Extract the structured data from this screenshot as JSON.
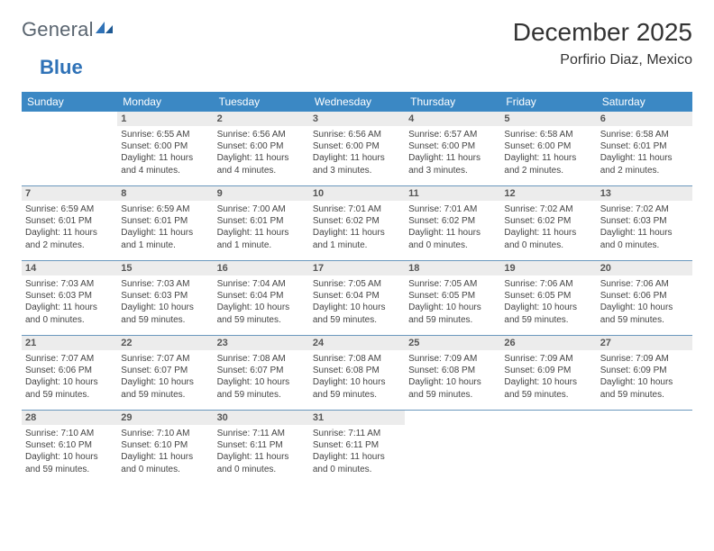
{
  "logo": {
    "text_general": "General",
    "text_blue": "Blue"
  },
  "header": {
    "month_title": "December 2025",
    "location": "Porfirio Diaz, Mexico"
  },
  "colors": {
    "header_bar": "#3b88c4",
    "row_divider": "#6a98bd",
    "daynum_bg": "#ececec",
    "text": "#444444",
    "logo_gray": "#5a6570",
    "logo_blue": "#2f72b7"
  },
  "weekdays": [
    "Sunday",
    "Monday",
    "Tuesday",
    "Wednesday",
    "Thursday",
    "Friday",
    "Saturday"
  ],
  "weeks": [
    [
      {
        "num": "",
        "sunrise": "",
        "sunset": "",
        "daylight1": "",
        "daylight2": ""
      },
      {
        "num": "1",
        "sunrise": "Sunrise: 6:55 AM",
        "sunset": "Sunset: 6:00 PM",
        "daylight1": "Daylight: 11 hours",
        "daylight2": "and 4 minutes."
      },
      {
        "num": "2",
        "sunrise": "Sunrise: 6:56 AM",
        "sunset": "Sunset: 6:00 PM",
        "daylight1": "Daylight: 11 hours",
        "daylight2": "and 4 minutes."
      },
      {
        "num": "3",
        "sunrise": "Sunrise: 6:56 AM",
        "sunset": "Sunset: 6:00 PM",
        "daylight1": "Daylight: 11 hours",
        "daylight2": "and 3 minutes."
      },
      {
        "num": "4",
        "sunrise": "Sunrise: 6:57 AM",
        "sunset": "Sunset: 6:00 PM",
        "daylight1": "Daylight: 11 hours",
        "daylight2": "and 3 minutes."
      },
      {
        "num": "5",
        "sunrise": "Sunrise: 6:58 AM",
        "sunset": "Sunset: 6:00 PM",
        "daylight1": "Daylight: 11 hours",
        "daylight2": "and 2 minutes."
      },
      {
        "num": "6",
        "sunrise": "Sunrise: 6:58 AM",
        "sunset": "Sunset: 6:01 PM",
        "daylight1": "Daylight: 11 hours",
        "daylight2": "and 2 minutes."
      }
    ],
    [
      {
        "num": "7",
        "sunrise": "Sunrise: 6:59 AM",
        "sunset": "Sunset: 6:01 PM",
        "daylight1": "Daylight: 11 hours",
        "daylight2": "and 2 minutes."
      },
      {
        "num": "8",
        "sunrise": "Sunrise: 6:59 AM",
        "sunset": "Sunset: 6:01 PM",
        "daylight1": "Daylight: 11 hours",
        "daylight2": "and 1 minute."
      },
      {
        "num": "9",
        "sunrise": "Sunrise: 7:00 AM",
        "sunset": "Sunset: 6:01 PM",
        "daylight1": "Daylight: 11 hours",
        "daylight2": "and 1 minute."
      },
      {
        "num": "10",
        "sunrise": "Sunrise: 7:01 AM",
        "sunset": "Sunset: 6:02 PM",
        "daylight1": "Daylight: 11 hours",
        "daylight2": "and 1 minute."
      },
      {
        "num": "11",
        "sunrise": "Sunrise: 7:01 AM",
        "sunset": "Sunset: 6:02 PM",
        "daylight1": "Daylight: 11 hours",
        "daylight2": "and 0 minutes."
      },
      {
        "num": "12",
        "sunrise": "Sunrise: 7:02 AM",
        "sunset": "Sunset: 6:02 PM",
        "daylight1": "Daylight: 11 hours",
        "daylight2": "and 0 minutes."
      },
      {
        "num": "13",
        "sunrise": "Sunrise: 7:02 AM",
        "sunset": "Sunset: 6:03 PM",
        "daylight1": "Daylight: 11 hours",
        "daylight2": "and 0 minutes."
      }
    ],
    [
      {
        "num": "14",
        "sunrise": "Sunrise: 7:03 AM",
        "sunset": "Sunset: 6:03 PM",
        "daylight1": "Daylight: 11 hours",
        "daylight2": "and 0 minutes."
      },
      {
        "num": "15",
        "sunrise": "Sunrise: 7:03 AM",
        "sunset": "Sunset: 6:03 PM",
        "daylight1": "Daylight: 10 hours",
        "daylight2": "and 59 minutes."
      },
      {
        "num": "16",
        "sunrise": "Sunrise: 7:04 AM",
        "sunset": "Sunset: 6:04 PM",
        "daylight1": "Daylight: 10 hours",
        "daylight2": "and 59 minutes."
      },
      {
        "num": "17",
        "sunrise": "Sunrise: 7:05 AM",
        "sunset": "Sunset: 6:04 PM",
        "daylight1": "Daylight: 10 hours",
        "daylight2": "and 59 minutes."
      },
      {
        "num": "18",
        "sunrise": "Sunrise: 7:05 AM",
        "sunset": "Sunset: 6:05 PM",
        "daylight1": "Daylight: 10 hours",
        "daylight2": "and 59 minutes."
      },
      {
        "num": "19",
        "sunrise": "Sunrise: 7:06 AM",
        "sunset": "Sunset: 6:05 PM",
        "daylight1": "Daylight: 10 hours",
        "daylight2": "and 59 minutes."
      },
      {
        "num": "20",
        "sunrise": "Sunrise: 7:06 AM",
        "sunset": "Sunset: 6:06 PM",
        "daylight1": "Daylight: 10 hours",
        "daylight2": "and 59 minutes."
      }
    ],
    [
      {
        "num": "21",
        "sunrise": "Sunrise: 7:07 AM",
        "sunset": "Sunset: 6:06 PM",
        "daylight1": "Daylight: 10 hours",
        "daylight2": "and 59 minutes."
      },
      {
        "num": "22",
        "sunrise": "Sunrise: 7:07 AM",
        "sunset": "Sunset: 6:07 PM",
        "daylight1": "Daylight: 10 hours",
        "daylight2": "and 59 minutes."
      },
      {
        "num": "23",
        "sunrise": "Sunrise: 7:08 AM",
        "sunset": "Sunset: 6:07 PM",
        "daylight1": "Daylight: 10 hours",
        "daylight2": "and 59 minutes."
      },
      {
        "num": "24",
        "sunrise": "Sunrise: 7:08 AM",
        "sunset": "Sunset: 6:08 PM",
        "daylight1": "Daylight: 10 hours",
        "daylight2": "and 59 minutes."
      },
      {
        "num": "25",
        "sunrise": "Sunrise: 7:09 AM",
        "sunset": "Sunset: 6:08 PM",
        "daylight1": "Daylight: 10 hours",
        "daylight2": "and 59 minutes."
      },
      {
        "num": "26",
        "sunrise": "Sunrise: 7:09 AM",
        "sunset": "Sunset: 6:09 PM",
        "daylight1": "Daylight: 10 hours",
        "daylight2": "and 59 minutes."
      },
      {
        "num": "27",
        "sunrise": "Sunrise: 7:09 AM",
        "sunset": "Sunset: 6:09 PM",
        "daylight1": "Daylight: 10 hours",
        "daylight2": "and 59 minutes."
      }
    ],
    [
      {
        "num": "28",
        "sunrise": "Sunrise: 7:10 AM",
        "sunset": "Sunset: 6:10 PM",
        "daylight1": "Daylight: 10 hours",
        "daylight2": "and 59 minutes."
      },
      {
        "num": "29",
        "sunrise": "Sunrise: 7:10 AM",
        "sunset": "Sunset: 6:10 PM",
        "daylight1": "Daylight: 11 hours",
        "daylight2": "and 0 minutes."
      },
      {
        "num": "30",
        "sunrise": "Sunrise: 7:11 AM",
        "sunset": "Sunset: 6:11 PM",
        "daylight1": "Daylight: 11 hours",
        "daylight2": "and 0 minutes."
      },
      {
        "num": "31",
        "sunrise": "Sunrise: 7:11 AM",
        "sunset": "Sunset: 6:11 PM",
        "daylight1": "Daylight: 11 hours",
        "daylight2": "and 0 minutes."
      },
      {
        "num": "",
        "sunrise": "",
        "sunset": "",
        "daylight1": "",
        "daylight2": ""
      },
      {
        "num": "",
        "sunrise": "",
        "sunset": "",
        "daylight1": "",
        "daylight2": ""
      },
      {
        "num": "",
        "sunrise": "",
        "sunset": "",
        "daylight1": "",
        "daylight2": ""
      }
    ]
  ]
}
